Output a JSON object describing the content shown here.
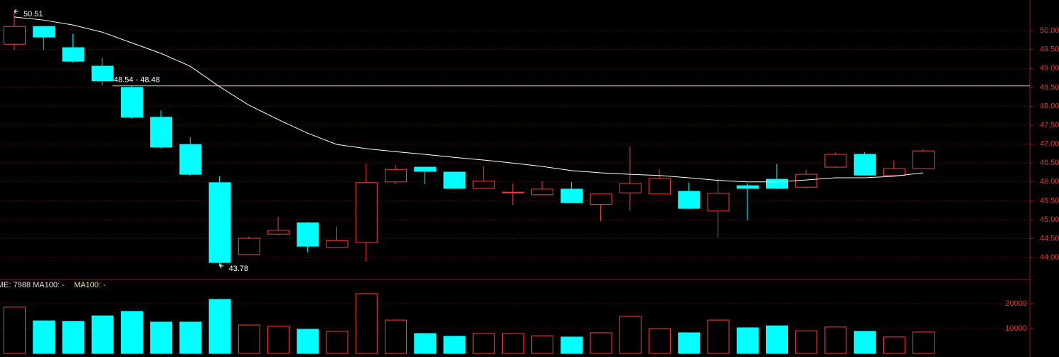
{
  "chart_data": [
    {
      "type": "candlestick",
      "up_color": "#ff3c3c",
      "down_color": "#00ffff",
      "open": [
        49.64,
        50.11,
        49.55,
        49.06,
        48.5,
        47.71,
        46.99,
        45.98,
        44.08,
        44.62,
        44.92,
        44.27,
        44.4,
        46.0,
        46.39,
        46.26,
        45.83,
        45.71,
        45.66,
        45.81,
        45.4,
        45.71,
        45.68,
        45.75,
        45.23,
        45.9,
        46.07,
        45.86,
        46.39,
        46.73,
        46.17,
        46.35
      ],
      "high": [
        50.51,
        50.11,
        49.92,
        49.27,
        48.55,
        47.89,
        47.18,
        46.15,
        44.55,
        45.08,
        44.94,
        44.81,
        46.48,
        46.45,
        46.39,
        46.26,
        46.41,
        45.96,
        46.02,
        46.0,
        45.68,
        46.94,
        46.33,
        45.98,
        46.09,
        45.96,
        46.48,
        46.33,
        46.77,
        46.79,
        46.56,
        46.86
      ],
      "low": [
        49.49,
        49.49,
        49.15,
        48.55,
        47.67,
        46.88,
        46.17,
        43.78,
        44.08,
        44.59,
        44.14,
        44.27,
        43.89,
        45.94,
        45.94,
        45.81,
        45.83,
        45.39,
        45.66,
        45.45,
        44.96,
        45.24,
        45.68,
        45.28,
        44.53,
        44.98,
        45.81,
        45.83,
        46.37,
        46.18,
        46.17,
        46.35
      ],
      "close": [
        50.11,
        49.83,
        49.19,
        48.67,
        47.71,
        46.92,
        46.2,
        43.87,
        44.51,
        44.72,
        44.3,
        44.45,
        45.98,
        46.33,
        46.28,
        45.83,
        46.02,
        45.73,
        45.81,
        45.45,
        45.68,
        45.96,
        46.09,
        45.3,
        45.7,
        45.83,
        45.83,
        46.2,
        46.73,
        46.18,
        46.35,
        46.82
      ],
      "series": [
        {
          "color": "#ffffff",
          "values": [
            50.36,
            50.28,
            50.15,
            49.96,
            49.68,
            49.4,
            49.06,
            48.52,
            48.03,
            47.65,
            47.29,
            46.99,
            46.88,
            46.8,
            46.73,
            46.65,
            46.58,
            46.5,
            46.41,
            46.3,
            46.24,
            46.2,
            46.17,
            46.11,
            46.04,
            46.0,
            46.0,
            46.05,
            46.11,
            46.11,
            46.15,
            46.24
          ]
        }
      ],
      "high_label": "50.51",
      "low_label": "43.78",
      "hline": {
        "value": 48.54,
        "label": "48.54 - 48.48",
        "color": "#c8c8c8"
      },
      "ylim": [
        43.42,
        50.81
      ],
      "yticks": [
        {
          "value": 50.0,
          "label": "50.00"
        },
        {
          "value": 49.5,
          "label": "49.50"
        },
        {
          "value": 49.0,
          "label": "49.00"
        },
        {
          "value": 48.5,
          "label": "48.50"
        },
        {
          "value": 48.0,
          "label": "48.00"
        },
        {
          "value": 47.5,
          "label": "47.50"
        },
        {
          "value": 47.0,
          "label": "47.00"
        },
        {
          "value": 46.5,
          "label": "46.50"
        },
        {
          "value": 46.0,
          "label": "46.00"
        },
        {
          "value": 45.5,
          "label": "45.50"
        },
        {
          "value": 45.0,
          "label": "45.00"
        },
        {
          "value": 44.5,
          "label": "44.50"
        },
        {
          "value": 44.0,
          "label": "44.00"
        }
      ],
      "grid": true
    },
    {
      "type": "bar",
      "header": "ME: 7988 MA100: -",
      "header2": "MA100: -",
      "values": [
        18600,
        13100,
        12900,
        15100,
        16900,
        12600,
        12600,
        21700,
        11400,
        10900,
        9700,
        8900,
        24000,
        13400,
        8000,
        6900,
        8000,
        8000,
        7100,
        6600,
        8300,
        14900,
        10000,
        8300,
        13400,
        10300,
        11100,
        9100,
        10600,
        8900,
        6600,
        8600
      ],
      "ylim": [
        0,
        29700
      ],
      "yticks": [
        20000,
        10000
      ],
      "grid": true
    }
  ]
}
